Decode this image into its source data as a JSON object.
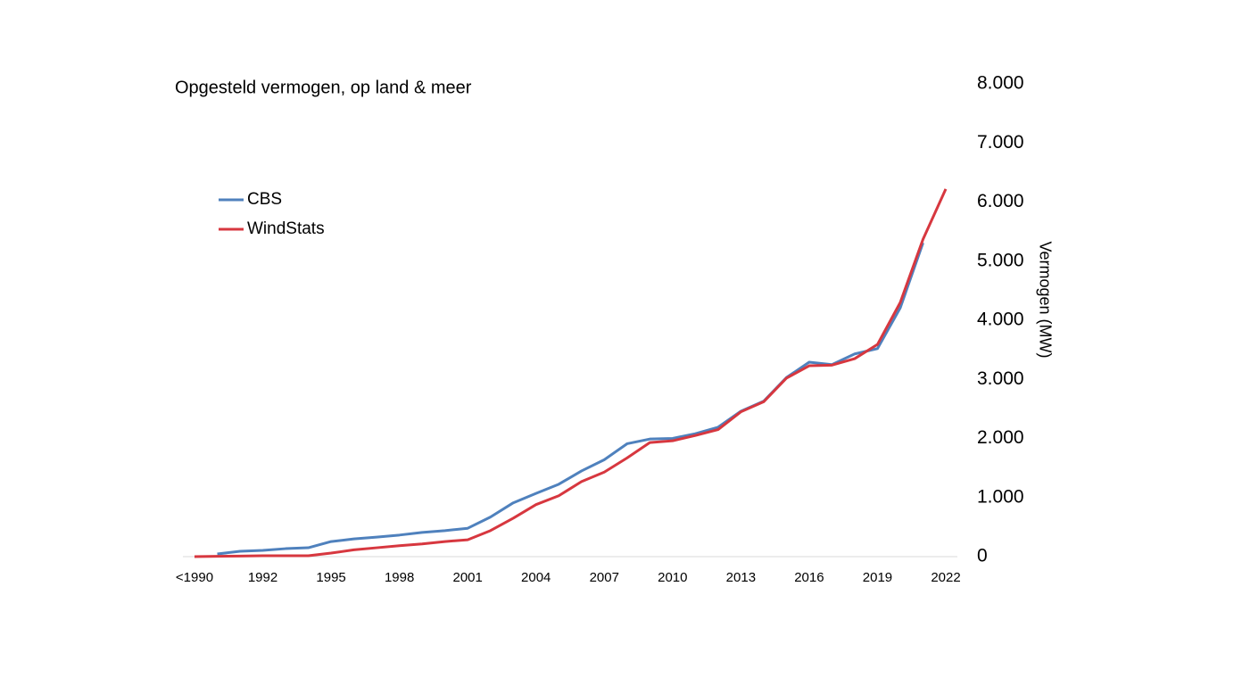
{
  "chart_data": {
    "type": "line",
    "title": "Opgesteld vermogen, op land & meer",
    "y_axis_label": "Vermogen (MW)",
    "categories": [
      "<1990",
      null,
      null,
      "1992",
      null,
      null,
      "1995",
      null,
      null,
      "1998",
      null,
      null,
      "2001",
      null,
      null,
      "2004",
      null,
      null,
      "2007",
      null,
      null,
      "2010",
      null,
      null,
      "2013",
      null,
      null,
      "2016",
      null,
      null,
      "2019",
      null,
      null,
      "2022"
    ],
    "series": [
      {
        "name": "CBS",
        "color": "#4f81bd",
        "values": [
          null,
          45,
          90,
          105,
          135,
          150,
          255,
          300,
          330,
          365,
          410,
          440,
          480,
          670,
          910,
          1070,
          1225,
          1450,
          1640,
          1910,
          1990,
          2000,
          2080,
          2190,
          2460,
          2630,
          3030,
          3290,
          3250,
          3430,
          3520,
          4210,
          5310,
          null
        ]
      },
      {
        "name": "WindStats",
        "color": "#d7373f",
        "values": [
          0,
          5,
          10,
          15,
          15,
          15,
          60,
          115,
          150,
          185,
          215,
          255,
          285,
          440,
          650,
          880,
          1030,
          1270,
          1430,
          1670,
          1930,
          1960,
          2050,
          2150,
          2450,
          2620,
          3020,
          3230,
          3240,
          3350,
          3590,
          4300,
          5370,
          6220
        ]
      }
    ],
    "ylim": [
      0,
      8000
    ],
    "yticks": [
      0,
      {
        "value": 1000,
        "label": "1.000"
      },
      {
        "value": 2000,
        "label": "2.000"
      },
      {
        "value": 3000,
        "label": "3.000"
      },
      {
        "value": 4000,
        "label": "4.000"
      },
      {
        "value": 5000,
        "label": "5.000"
      },
      {
        "value": 6000,
        "label": "6.000"
      },
      {
        "value": 7000,
        "label": "7.000"
      },
      {
        "value": 8000,
        "label": "8.000"
      }
    ],
    "y_axis_side": "right",
    "grid": false,
    "legend_position": "upper left"
  }
}
